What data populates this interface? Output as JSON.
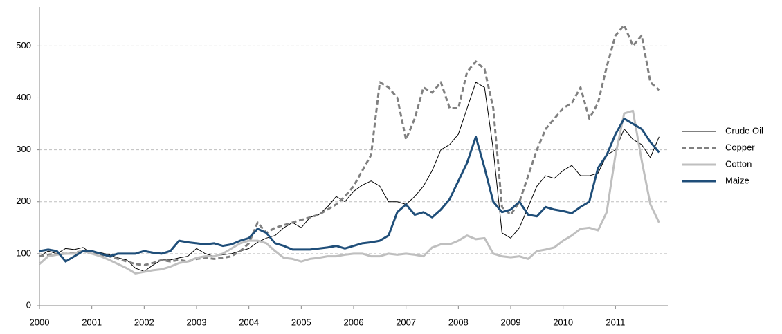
{
  "chart_data": {
    "type": "line",
    "categories": [
      "2000",
      null,
      null,
      null,
      null,
      null,
      "2001",
      null,
      null,
      null,
      null,
      null,
      "2002",
      null,
      null,
      null,
      null,
      null,
      "2003",
      null,
      null,
      null,
      null,
      null,
      "2004",
      null,
      null,
      null,
      null,
      null,
      "2005",
      null,
      null,
      null,
      null,
      null,
      "2006",
      null,
      null,
      null,
      null,
      null,
      "2007",
      null,
      null,
      null,
      null,
      null,
      "2008",
      null,
      null,
      null,
      null,
      null,
      "2009",
      null,
      null,
      null,
      null,
      null,
      "2010",
      null,
      null,
      null,
      null,
      null,
      "2011",
      null,
      null,
      null,
      null,
      null
    ],
    "series": [
      {
        "name": "Crude Oil",
        "color": "#000000",
        "width": 1,
        "dashed": false,
        "values": [
          95,
          105,
          100,
          110,
          108,
          112,
          100,
          102,
          98,
          92,
          88,
          72,
          66,
          78,
          88,
          88,
          92,
          95,
          110,
          100,
          95,
          98,
          100,
          105,
          110,
          122,
          130,
          135,
          150,
          160,
          150,
          170,
          175,
          190,
          210,
          200,
          220,
          232,
          240,
          230,
          200,
          200,
          195,
          210,
          230,
          260,
          300,
          310,
          330,
          380,
          430,
          420,
          300,
          140,
          130,
          150,
          190,
          230,
          250,
          245,
          260,
          270,
          250,
          250,
          255,
          290,
          300,
          340,
          320,
          310,
          285,
          325
        ]
      },
      {
        "name": "Copper",
        "color": "#808080",
        "width": 3,
        "dashed": true,
        "values": [
          95,
          98,
          100,
          100,
          102,
          105,
          100,
          98,
          95,
          90,
          85,
          80,
          78,
          82,
          88,
          85,
          88,
          85,
          90,
          92,
          90,
          92,
          95,
          105,
          120,
          160,
          140,
          150,
          155,
          160,
          165,
          170,
          175,
          185,
          195,
          210,
          230,
          260,
          290,
          430,
          420,
          400,
          320,
          360,
          420,
          410,
          430,
          380,
          380,
          450,
          470,
          455,
          380,
          190,
          175,
          200,
          250,
          300,
          340,
          360,
          380,
          390,
          420,
          360,
          390,
          460,
          520,
          540,
          500,
          520,
          430,
          415
        ]
      },
      {
        "name": "Cotton",
        "color": "#bfbfbf",
        "width": 3,
        "dashed": false,
        "values": [
          80,
          95,
          98,
          100,
          100,
          105,
          100,
          95,
          88,
          80,
          72,
          62,
          65,
          68,
          70,
          75,
          82,
          85,
          92,
          95,
          95,
          100,
          110,
          120,
          125,
          125,
          120,
          105,
          92,
          90,
          85,
          90,
          92,
          95,
          95,
          98,
          100,
          100,
          95,
          95,
          100,
          98,
          100,
          98,
          95,
          112,
          118,
          118,
          125,
          135,
          128,
          130,
          100,
          95,
          93,
          95,
          90,
          105,
          108,
          112,
          125,
          135,
          148,
          150,
          145,
          180,
          290,
          370,
          375,
          280,
          195,
          160
        ]
      },
      {
        "name": "Maize",
        "color": "#1f4e79",
        "width": 3,
        "dashed": false,
        "values": [
          105,
          108,
          105,
          85,
          95,
          105,
          105,
          100,
          95,
          100,
          100,
          100,
          105,
          102,
          100,
          105,
          125,
          122,
          120,
          118,
          120,
          115,
          118,
          125,
          130,
          148,
          140,
          120,
          115,
          108,
          108,
          108,
          110,
          112,
          115,
          110,
          115,
          120,
          122,
          125,
          135,
          180,
          195,
          175,
          180,
          170,
          185,
          205,
          240,
          275,
          325,
          265,
          200,
          180,
          185,
          200,
          175,
          172,
          190,
          185,
          182,
          178,
          190,
          200,
          265,
          290,
          330,
          360,
          350,
          340,
          315,
          295
        ]
      }
    ],
    "ylim": [
      0,
      575
    ],
    "yticks": [
      0,
      100,
      200,
      300,
      400,
      500
    ],
    "grid": true,
    "legend": "right"
  }
}
